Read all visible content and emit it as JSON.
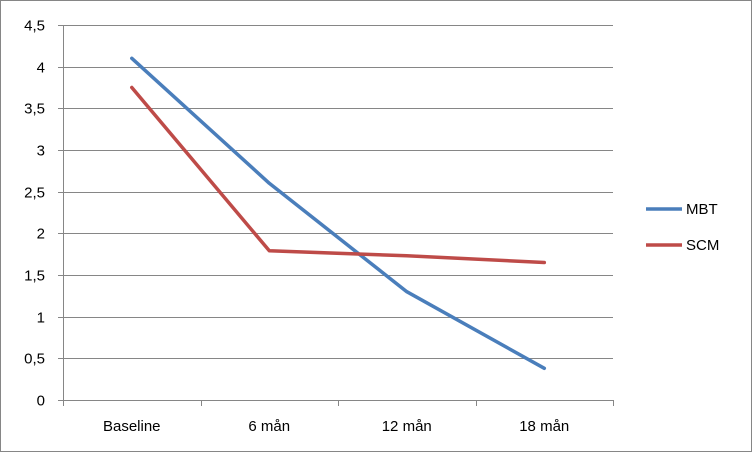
{
  "chart_data": {
    "type": "line",
    "categories": [
      "Baseline",
      "6 mån",
      "12 mån",
      "18 mån"
    ],
    "series": [
      {
        "name": "MBT",
        "values": [
          4.1,
          2.6,
          1.3,
          0.38
        ],
        "color": "#4a7ebb"
      },
      {
        "name": "SCM",
        "values": [
          3.75,
          1.79,
          1.73,
          1.65
        ],
        "color": "#be4b48"
      }
    ],
    "ylim": [
      0,
      4.5
    ],
    "yticks": [
      "0",
      "0,5",
      "1",
      "1,5",
      "2",
      "2,5",
      "3",
      "3,5",
      "4",
      "4,5"
    ],
    "ytick_values": [
      0,
      0.5,
      1,
      1.5,
      2,
      2.5,
      3,
      3.5,
      4,
      4.5
    ],
    "grid": true,
    "legend": "right",
    "colors": {
      "grid": "#868686",
      "axis": "#868686",
      "frame": "#868686"
    }
  }
}
